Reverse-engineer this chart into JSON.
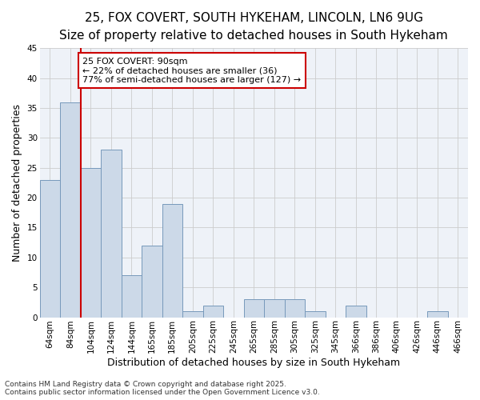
{
  "title": "25, FOX COVERT, SOUTH HYKEHAM, LINCOLN, LN6 9UG",
  "subtitle": "Size of property relative to detached houses in South Hykeham",
  "xlabel": "Distribution of detached houses by size in South Hykeham",
  "ylabel": "Number of detached properties",
  "categories": [
    "64sqm",
    "84sqm",
    "104sqm",
    "124sqm",
    "144sqm",
    "165sqm",
    "185sqm",
    "205sqm",
    "225sqm",
    "245sqm",
    "265sqm",
    "285sqm",
    "305sqm",
    "325sqm",
    "345sqm",
    "366sqm",
    "386sqm",
    "406sqm",
    "426sqm",
    "446sqm",
    "466sqm"
  ],
  "values": [
    23,
    36,
    25,
    28,
    7,
    12,
    19,
    1,
    2,
    0,
    3,
    3,
    3,
    1,
    0,
    2,
    0,
    0,
    0,
    1,
    0
  ],
  "bar_color": "#ccd9e8",
  "bar_edge_color": "#7799bb",
  "vline_x": 1.5,
  "vline_color": "#cc0000",
  "annotation_text": "25 FOX COVERT: 90sqm\n← 22% of detached houses are smaller (36)\n77% of semi-detached houses are larger (127) →",
  "annotation_box_color": "#ffffff",
  "annotation_box_edge": "#cc0000",
  "ylim": [
    0,
    45
  ],
  "yticks": [
    0,
    5,
    10,
    15,
    20,
    25,
    30,
    35,
    40,
    45
  ],
  "plot_bg_color": "#eef2f8",
  "fig_bg_color": "#ffffff",
  "grid_color": "#cccccc",
  "footer": "Contains HM Land Registry data © Crown copyright and database right 2025.\nContains public sector information licensed under the Open Government Licence v3.0.",
  "title_fontsize": 11,
  "subtitle_fontsize": 9.5,
  "xlabel_fontsize": 9,
  "ylabel_fontsize": 9,
  "tick_fontsize": 7.5,
  "footer_fontsize": 6.5,
  "annot_fontsize": 8
}
